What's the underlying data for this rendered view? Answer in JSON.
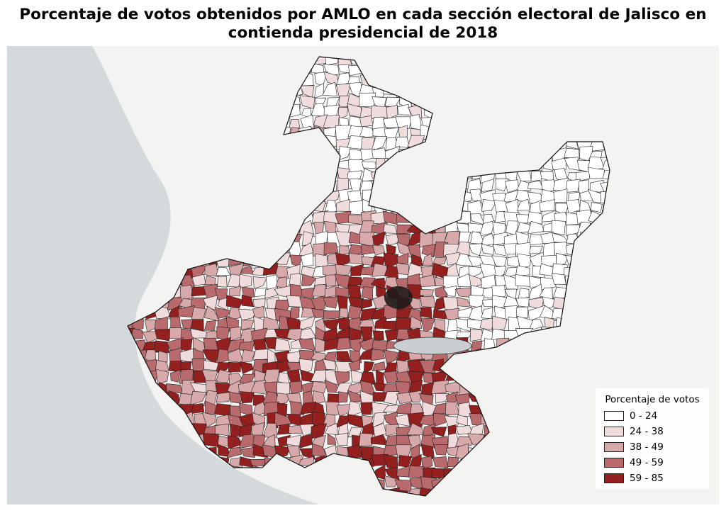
{
  "title": "Porcentaje de votos obtenidos por AMLO en cada sección electoral de Jalisco en contienda presidencial de 2018",
  "legend": {
    "title": "Porcentaje de votos",
    "items": [
      {
        "label": "0 - 24",
        "color": "#ffffff"
      },
      {
        "label": "24 - 38",
        "color": "#f0dcdc"
      },
      {
        "label": "38 - 49",
        "color": "#d8a9aa"
      },
      {
        "label": "49 - 59",
        "color": "#b86a6c"
      },
      {
        "label": "59 - 85",
        "color": "#93201f"
      }
    ]
  }
}
